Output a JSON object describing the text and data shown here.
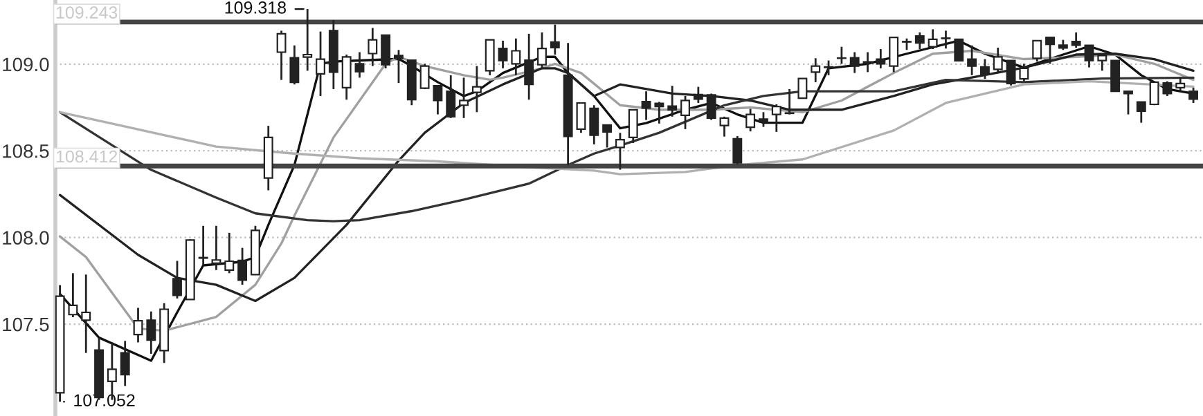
{
  "chart_data": {
    "type": "candlestick",
    "categories": [
      null,
      null,
      null,
      null,
      null,
      null,
      null,
      null,
      null,
      null,
      null,
      null,
      null,
      null,
      null,
      null,
      null,
      null,
      null,
      null,
      null,
      null,
      null,
      null,
      null,
      null,
      null,
      null,
      null,
      null,
      null,
      null,
      null,
      null,
      null,
      null,
      null,
      null,
      null,
      null,
      null,
      null,
      null,
      null,
      null,
      null,
      null,
      null,
      null,
      null,
      null,
      null,
      null,
      null,
      null,
      null,
      null,
      null,
      null,
      null,
      null,
      null,
      null,
      null,
      null,
      null,
      null,
      null,
      null,
      null,
      null,
      null,
      null,
      null,
      null,
      null,
      null,
      null,
      null,
      null,
      null,
      null,
      null,
      null,
      null,
      null,
      null,
      null
    ],
    "ohlc": [
      [
        107.104,
        107.725,
        107.052,
        107.661
      ],
      [
        107.555,
        107.794,
        107.54,
        107.608
      ],
      [
        107.523,
        107.786,
        107.334,
        107.568
      ],
      [
        107.35,
        107.42,
        107.063,
        107.077
      ],
      [
        107.17,
        107.395,
        107.063,
        107.24
      ],
      [
        107.334,
        107.403,
        107.143,
        107.209
      ],
      [
        107.44,
        107.594,
        107.395,
        107.52
      ],
      [
        107.523,
        107.573,
        107.329,
        107.408
      ],
      [
        107.347,
        107.621,
        107.276,
        107.586
      ],
      [
        107.762,
        107.865,
        107.648,
        107.666
      ],
      [
        107.642,
        107.99,
        107.64,
        107.985
      ],
      [
        107.881,
        108.067,
        107.839,
        107.884
      ],
      [
        107.852,
        108.067,
        107.812,
        107.87
      ],
      [
        107.812,
        108.027,
        107.794,
        107.863
      ],
      [
        107.868,
        107.94,
        107.727,
        107.754
      ],
      [
        107.786,
        108.067,
        107.786,
        108.041
      ],
      [
        108.343,
        108.644,
        108.272,
        108.577
      ],
      [
        109.069,
        109.193,
        108.909,
        109.175
      ],
      [
        109.037,
        109.108,
        108.883,
        108.895
      ],
      [
        109.041,
        109.318,
        108.962,
        109.055
      ],
      [
        108.944,
        109.188,
        108.816,
        109.029
      ],
      [
        109.193,
        109.254,
        108.856,
        108.954
      ],
      [
        108.864,
        109.055,
        108.795,
        109.042
      ],
      [
        109.002,
        109.069,
        108.922,
        108.957
      ],
      [
        109.061,
        109.209,
        108.989,
        109.14
      ],
      [
        109.167,
        109.167,
        108.976,
        108.997
      ],
      [
        109.05,
        109.082,
        108.891,
        109.035
      ],
      [
        109.023,
        109.023,
        108.763,
        108.795
      ],
      [
        108.861,
        109.002,
        108.856,
        108.989
      ],
      [
        108.875,
        108.875,
        108.71,
        108.79
      ],
      [
        108.843,
        108.936,
        108.689,
        108.697
      ],
      [
        108.763,
        108.922,
        108.689,
        108.79
      ],
      [
        108.837,
        108.989,
        108.723,
        108.869
      ],
      [
        108.962,
        109.14,
        108.936,
        109.14
      ],
      [
        109.09,
        109.135,
        108.976,
        109.021
      ],
      [
        109.002,
        109.148,
        108.936,
        109.077
      ],
      [
        109.023,
        109.175,
        108.795,
        108.883
      ],
      [
        108.997,
        109.183,
        108.976,
        109.09
      ],
      [
        109.127,
        109.228,
        109.055,
        109.095
      ],
      [
        108.936,
        109.122,
        108.418,
        108.583
      ],
      [
        108.625,
        108.776,
        108.604,
        108.776
      ],
      [
        108.745,
        108.763,
        108.537,
        108.59
      ],
      [
        108.649,
        108.649,
        108.519,
        108.609
      ],
      [
        108.519,
        108.604,
        108.391,
        108.564
      ],
      [
        108.577,
        108.737,
        108.545,
        108.737
      ],
      [
        108.784,
        108.843,
        108.678,
        108.747
      ],
      [
        108.774,
        108.782,
        108.657,
        108.755
      ],
      [
        108.758,
        108.875,
        108.697,
        108.737
      ],
      [
        108.705,
        108.816,
        108.625,
        108.79
      ],
      [
        108.824,
        108.869,
        108.776,
        108.798
      ],
      [
        108.822,
        108.83,
        108.678,
        108.689
      ],
      [
        108.646,
        108.697,
        108.582,
        108.689
      ],
      [
        108.569,
        108.585,
        108.423,
        108.431
      ],
      [
        108.636,
        108.742,
        108.612,
        108.71
      ],
      [
        108.683,
        108.723,
        108.638,
        108.667
      ],
      [
        108.71,
        108.768,
        108.609,
        108.755
      ],
      [
        108.716,
        108.856,
        108.71,
        108.718
      ],
      [
        108.803,
        108.917,
        108.803,
        108.917
      ],
      [
        108.954,
        109.034,
        108.896,
        108.989
      ],
      [
        108.981,
        109.021,
        108.936,
        108.984
      ],
      [
        109.034,
        109.1,
        109.002,
        109.035
      ],
      [
        109.037,
        109.069,
        108.949,
        108.989
      ],
      [
        109.013,
        109.069,
        108.954,
        109.007
      ],
      [
        109.029,
        109.087,
        108.976,
        109.002
      ],
      [
        108.989,
        109.154,
        108.954,
        109.154
      ],
      [
        109.128,
        109.148,
        109.082,
        109.13
      ],
      [
        109.162,
        109.183,
        109.087,
        109.122
      ],
      [
        109.1,
        109.201,
        109.087,
        109.143
      ],
      [
        109.148,
        109.193,
        109.09,
        109.15
      ],
      [
        109.143,
        109.143,
        109.015,
        109.02
      ],
      [
        109.029,
        109.108,
        108.936,
        108.989
      ],
      [
        108.984,
        109.029,
        108.915,
        108.941
      ],
      [
        108.97,
        109.095,
        108.949,
        109.042
      ],
      [
        109.021,
        109.021,
        108.877,
        108.888
      ],
      [
        108.915,
        109.002,
        108.901,
        108.976
      ],
      [
        109.034,
        109.135,
        109.015,
        109.135
      ],
      [
        109.154,
        109.154,
        109.002,
        109.114
      ],
      [
        109.109,
        109.14,
        109.082,
        109.093
      ],
      [
        109.13,
        109.183,
        109.095,
        109.109
      ],
      [
        109.108,
        109.108,
        108.981,
        109.021
      ],
      [
        109.021,
        109.05,
        108.962,
        109.05
      ],
      [
        109.021,
        109.021,
        108.843,
        108.843
      ],
      [
        108.843,
        108.848,
        108.71,
        108.83
      ],
      [
        108.782,
        108.782,
        108.662,
        108.729
      ],
      [
        108.768,
        108.901,
        108.763,
        108.896
      ],
      [
        108.891,
        108.901,
        108.816,
        108.83
      ],
      [
        108.864,
        108.922,
        108.843,
        108.888
      ],
      [
        108.843,
        108.864,
        108.776,
        108.798
      ]
    ],
    "series": [
      {
        "type": "line",
        "color": "#111111",
        "values": [
          107.674,
          null,
          null,
          107.422,
          null,
          null,
          null,
          107.289,
          null,
          107.568,
          null,
          107.839,
          null,
          null,
          107.86,
          107.887,
          108.073,
          null,
          108.418,
          null,
          109.002,
          109.015,
          null,
          null,
          null,
          null,
          109.03,
          108.989,
          null,
          108.896,
          null,
          108.816,
          108.843,
          null,
          108.949,
          null,
          null,
          109.042,
          109.042,
          108.949,
          null,
          108.816,
          null,
          108.63,
          null,
          108.66,
          null,
          null,
          108.737,
          null,
          108.776,
          null,
          108.71,
          null,
          108.662,
          null,
          null,
          108.662,
          null,
          108.976,
          null,
          null,
          109.002,
          null,
          null,
          109.06,
          null,
          null,
          null,
          109.135,
          null,
          109.06,
          null,
          null,
          108.98,
          null,
          null,
          109.055,
          null,
          109.103,
          null,
          109.055,
          null,
          108.936,
          null,
          108.856,
          null,
          108.83
        ]
      },
      {
        "type": "line",
        "color": "#a0a0a0",
        "values": [
          108.006,
          null,
          107.887,
          null,
          null,
          null,
          107.475,
          null,
          107.462,
          null,
          null,
          null,
          107.542,
          null,
          null,
          107.727,
          null,
          107.966,
          108.126,
          null,
          null,
          108.577,
          null,
          null,
          null,
          109.002,
          109.042,
          null,
          108.989,
          null,
          null,
          108.936,
          null,
          108.91,
          108.922,
          null,
          null,
          108.976,
          109.002,
          null,
          108.949,
          null,
          null,
          108.763,
          null,
          null,
          108.737,
          null,
          null,
          null,
          108.737,
          null,
          null,
          108.75,
          null,
          null,
          null,
          108.723,
          null,
          null,
          108.79,
          null,
          null,
          null,
          108.949,
          null,
          null,
          109.06,
          null,
          null,
          109.077,
          null,
          null,
          null,
          109.029,
          null,
          null,
          null,
          109.042,
          null,
          null,
          109.055,
          null,
          null,
          109.002,
          null,
          null,
          108.909
        ]
      },
      {
        "type": "line",
        "color": "#222222",
        "values": [
          108.245,
          null,
          null,
          null,
          null,
          null,
          107.9,
          null,
          null,
          107.767,
          null,
          null,
          107.727,
          null,
          null,
          107.634,
          null,
          null,
          107.767,
          null,
          null,
          null,
          108.073,
          null,
          null,
          null,
          108.444,
          null,
          108.604,
          null,
          null,
          108.776,
          null,
          null,
          108.883,
          null,
          null,
          108.976,
          108.976,
          108.949,
          null,
          108.816,
          null,
          108.883,
          null,
          null,
          null,
          108.83,
          null,
          null,
          108.816,
          null,
          null,
          108.79,
          null,
          null,
          108.737,
          null,
          null,
          null,
          108.737,
          null,
          null,
          null,
          108.816,
          null,
          null,
          108.883,
          null,
          null,
          108.923,
          null,
          null,
          null,
          108.98,
          null,
          null,
          null,
          109.055,
          null,
          null,
          109.06,
          null,
          null,
          109.029,
          null,
          null,
          108.962
        ]
      },
      {
        "type": "line",
        "color": "#333333",
        "values": [
          108.723,
          null,
          null,
          null,
          null,
          null,
          null,
          108.39,
          null,
          null,
          null,
          null,
          108.23,
          null,
          null,
          108.139,
          null,
          null,
          null,
          108.1,
          null,
          108.094,
          null,
          108.1,
          null,
          null,
          null,
          108.152,
          null,
          null,
          null,
          108.218,
          null,
          null,
          null,
          null,
          108.311,
          null,
          null,
          108.418,
          null,
          108.484,
          null,
          108.53,
          null,
          null,
          108.604,
          null,
          null,
          null,
          null,
          108.763,
          null,
          null,
          108.816,
          null,
          null,
          108.843,
          null,
          null,
          null,
          null,
          null,
          null,
          108.843,
          null,
          null,
          null,
          108.909,
          null,
          null,
          null,
          null,
          null,
          108.896,
          null,
          null,
          null,
          null,
          null,
          108.917,
          null,
          null,
          null,
          null,
          null,
          null,
          108.922
        ]
      },
      {
        "type": "line",
        "color": "#b0b0b0",
        "values": [
          108.723,
          null,
          null,
          null,
          108.657,
          null,
          null,
          null,
          null,
          null,
          null,
          null,
          108.524,
          null,
          null,
          null,
          108.497,
          null,
          108.484,
          null,
          null,
          null,
          null,
          108.457,
          null,
          null,
          null,
          null,
          null,
          108.439,
          null,
          null,
          null,
          null,
          null,
          null,
          108.405,
          null,
          null,
          null,
          null,
          108.386,
          null,
          108.365,
          null,
          null,
          null,
          null,
          108.378,
          null,
          null,
          null,
          108.418,
          null,
          null,
          null,
          null,
          108.45,
          null,
          null,
          null,
          null,
          null,
          null,
          108.617,
          null,
          null,
          null,
          108.776,
          null,
          null,
          null,
          null,
          null,
          108.883,
          null,
          null,
          null,
          null,
          108.901,
          null,
          null,
          null,
          null,
          null,
          null,
          null,
          108.87
        ]
      }
    ],
    "ylim": [
      106.97,
      109.37
    ],
    "yticks": [
      107.5,
      {
        "value": 108.0,
        "label": "108.0"
      },
      108.5,
      {
        "value": 109.0,
        "label": "109.0"
      }
    ],
    "grid": "y",
    "ref_lines": [
      {
        "axis": "y",
        "value": 109.243,
        "label": "109.243",
        "color": "#444444"
      },
      {
        "axis": "y",
        "value": 108.412,
        "label": "108.412",
        "color": "#444444"
      }
    ],
    "annotations": [
      "109.318",
      "107.052"
    ]
  }
}
